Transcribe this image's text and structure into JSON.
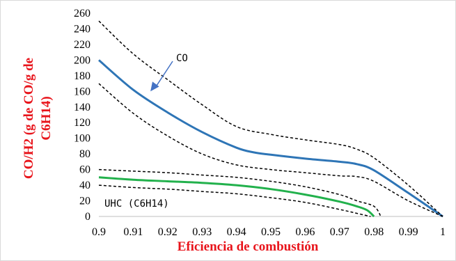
{
  "chart_data": {
    "type": "line",
    "xlabel": "Eficiencia de combustión",
    "ylabel_lines": [
      "CO/H2 (g de CO/g de",
      "C6H14)"
    ],
    "xlim": [
      0.9,
      1.0
    ],
    "ylim": [
      0,
      260
    ],
    "x_ticks": [
      "0.9",
      "0.91",
      "0.92",
      "0.93",
      "0.94",
      "0.95",
      "0.96",
      "0.97",
      "0.98",
      "0.99",
      "1"
    ],
    "y_ticks": [
      "0",
      "20",
      "40",
      "60",
      "80",
      "100",
      "120",
      "140",
      "160",
      "180",
      "200",
      "220",
      "240",
      "260"
    ],
    "grid": false,
    "series": [
      {
        "name": "CO",
        "style": "solid",
        "color": "#2e75b6",
        "x": [
          0.9,
          0.91,
          0.92,
          0.93,
          0.94,
          0.945,
          0.95,
          0.96,
          0.97,
          0.975,
          0.98,
          0.99,
          1.0
        ],
        "y": [
          200,
          162,
          133,
          108,
          88,
          82,
          79,
          74,
          70,
          67,
          59,
          30,
          0
        ]
      },
      {
        "style": "dashed",
        "color": "#000000",
        "x": [
          0.9,
          0.91,
          0.92,
          0.93,
          0.94,
          0.95,
          0.96,
          0.97,
          0.975,
          0.98,
          0.99,
          1.0
        ],
        "y": [
          250,
          208,
          175,
          143,
          115,
          105,
          98,
          92,
          86,
          75,
          40,
          0
        ]
      },
      {
        "style": "dashed",
        "color": "#000000",
        "x": [
          0.9,
          0.91,
          0.92,
          0.93,
          0.94,
          0.95,
          0.96,
          0.97,
          0.975,
          0.98,
          0.99,
          1.0
        ],
        "y": [
          170,
          132,
          103,
          80,
          66,
          60,
          56,
          52,
          51,
          45,
          20,
          0
        ]
      },
      {
        "name": "UHC (C6H14)",
        "style": "solid",
        "color": "#22b14c",
        "x": [
          0.9,
          0.91,
          0.92,
          0.93,
          0.94,
          0.95,
          0.96,
          0.97,
          0.975,
          0.978,
          0.98
        ],
        "y": [
          50,
          47,
          45,
          43,
          40,
          35,
          28,
          19,
          13,
          8,
          0
        ]
      },
      {
        "style": "dashed",
        "color": "#000000",
        "x": [
          0.9,
          0.91,
          0.92,
          0.93,
          0.94,
          0.95,
          0.96,
          0.97,
          0.975,
          0.98,
          0.982
        ],
        "y": [
          60,
          58,
          56,
          53,
          50,
          45,
          38,
          28,
          20,
          13,
          0
        ]
      },
      {
        "style": "dashed",
        "color": "#000000",
        "x": [
          0.9,
          0.91,
          0.92,
          0.93,
          0.94,
          0.95,
          0.96,
          0.97,
          0.975,
          0.979
        ],
        "y": [
          40,
          37,
          35,
          32,
          29,
          24,
          18,
          9,
          4,
          0
        ]
      }
    ],
    "annotations": [
      {
        "text": "CO",
        "target_x": 0.915,
        "target_y": 160
      },
      {
        "text": "UHC (C6H14)"
      }
    ]
  }
}
